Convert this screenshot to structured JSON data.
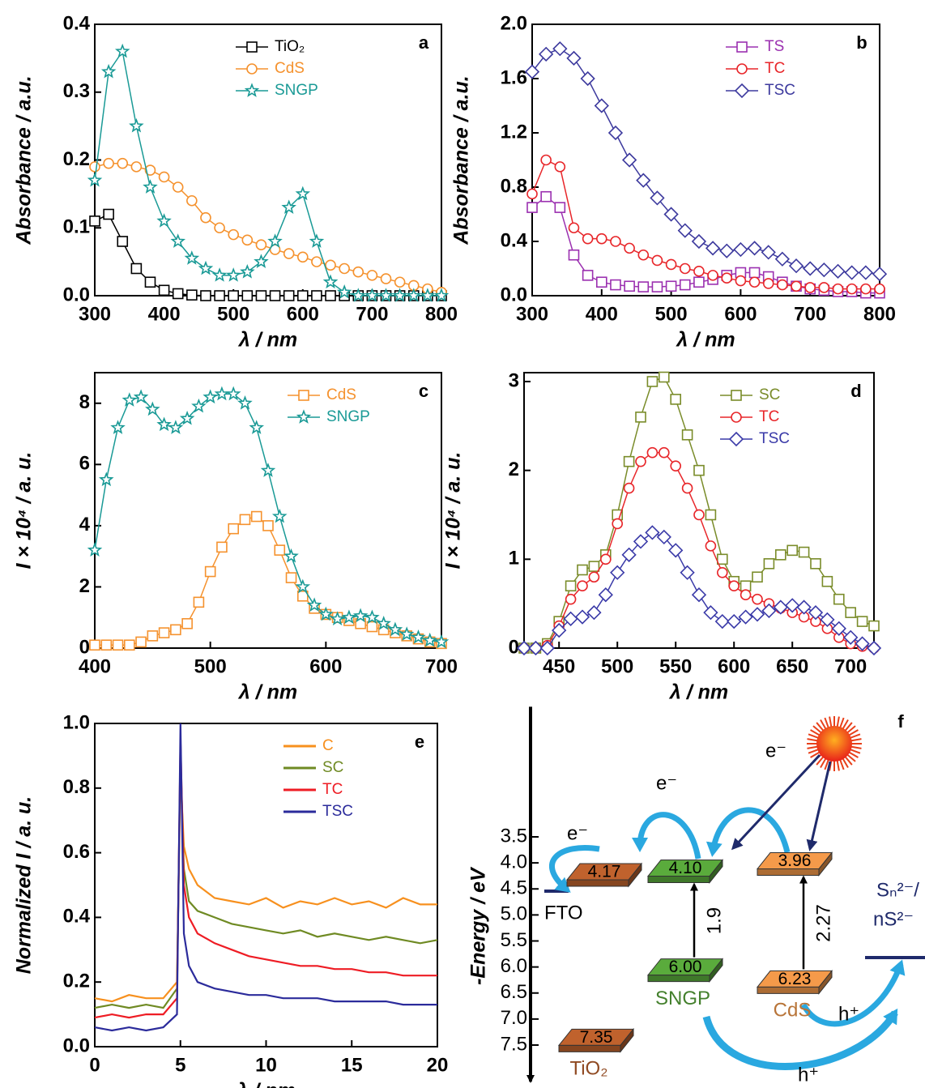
{
  "chart_data": [
    {
      "type": "line",
      "panel": "a",
      "xlabel": "λ / nm",
      "ylabel": "Absorbance / a.u.",
      "legend": "upper center",
      "x": [
        300,
        320,
        340,
        360,
        380,
        400,
        420,
        440,
        460,
        480,
        500,
        520,
        540,
        560,
        580,
        600,
        620,
        640,
        660,
        680,
        700,
        720,
        740,
        760,
        780,
        800
      ],
      "xlim": [
        300,
        800
      ],
      "xticks": [
        300,
        400,
        500,
        600,
        700,
        800
      ],
      "ylim": [
        0,
        0.4
      ],
      "yticks": [
        {
          "value": 0,
          "label": "0.0"
        },
        0.1,
        0.2,
        0.3,
        0.4
      ],
      "series": [
        {
          "name": "TiO₂",
          "color": "#000000",
          "marker": "square",
          "values": [
            0.11,
            0.12,
            0.08,
            0.04,
            0.02,
            0.008,
            0.003,
            0.001,
            0,
            0,
            0,
            0,
            0,
            0,
            0,
            0,
            0,
            0,
            0,
            0,
            0,
            0,
            0,
            0,
            0,
            0
          ]
        },
        {
          "name": "CdS",
          "color": "#f5922e",
          "marker": "circle",
          "values": [
            0.19,
            0.195,
            0.195,
            0.19,
            0.185,
            0.175,
            0.16,
            0.14,
            0.115,
            0.1,
            0.09,
            0.082,
            0.075,
            0.068,
            0.062,
            0.057,
            0.05,
            0.045,
            0.04,
            0.035,
            0.03,
            0.025,
            0.02,
            0.015,
            0.01,
            0.005
          ]
        },
        {
          "name": "SNGP",
          "color": "#1a9a96",
          "marker": "star",
          "values": [
            0.17,
            0.33,
            0.36,
            0.25,
            0.16,
            0.11,
            0.08,
            0.055,
            0.04,
            0.03,
            0.03,
            0.035,
            0.05,
            0.08,
            0.13,
            0.15,
            0.08,
            0.02,
            0.005,
            0,
            0,
            0,
            0,
            0,
            0,
            0
          ]
        }
      ]
    },
    {
      "type": "line",
      "panel": "b",
      "xlabel": "λ / nm",
      "ylabel": "Absorbance / a.u.",
      "legend": "upper right",
      "x": [
        300,
        320,
        340,
        360,
        380,
        400,
        420,
        440,
        460,
        480,
        500,
        520,
        540,
        560,
        580,
        600,
        620,
        640,
        660,
        680,
        700,
        720,
        740,
        760,
        780,
        800
      ],
      "xlim": [
        300,
        800
      ],
      "xticks": [
        300,
        400,
        500,
        600,
        700,
        800
      ],
      "ylim": [
        0,
        2.0
      ],
      "yticks": [
        {
          "value": 0,
          "label": "0.0"
        },
        0.4,
        0.8,
        1.2,
        1.6,
        {
          "value": 2,
          "label": "2.0"
        }
      ],
      "series": [
        {
          "name": "TS",
          "color": "#9b30b0",
          "marker": "square",
          "values": [
            0.65,
            0.73,
            0.65,
            0.3,
            0.15,
            0.1,
            0.08,
            0.07,
            0.065,
            0.065,
            0.07,
            0.08,
            0.1,
            0.12,
            0.15,
            0.17,
            0.17,
            0.14,
            0.1,
            0.07,
            0.05,
            0.04,
            0.03,
            0.03,
            0.02,
            0.02
          ]
        },
        {
          "name": "TC",
          "color": "#e8262a",
          "marker": "circle",
          "values": [
            0.75,
            1.0,
            0.95,
            0.5,
            0.42,
            0.42,
            0.4,
            0.35,
            0.3,
            0.26,
            0.23,
            0.2,
            0.18,
            0.15,
            0.13,
            0.11,
            0.1,
            0.09,
            0.08,
            0.07,
            0.06,
            0.06,
            0.05,
            0.05,
            0.05,
            0.05
          ]
        },
        {
          "name": "TSC",
          "color": "#3d3a9e",
          "marker": "diamond",
          "values": [
            1.65,
            1.78,
            1.82,
            1.75,
            1.6,
            1.4,
            1.2,
            1.0,
            0.85,
            0.72,
            0.6,
            0.48,
            0.4,
            0.35,
            0.33,
            0.34,
            0.35,
            0.32,
            0.27,
            0.22,
            0.2,
            0.19,
            0.18,
            0.17,
            0.17,
            0.16
          ]
        }
      ]
    },
    {
      "type": "line",
      "panel": "c",
      "xlabel": "λ / nm",
      "ylabel": "I × 10⁴ / a. u.",
      "legend": "upper right",
      "x": [
        400,
        410,
        420,
        430,
        440,
        450,
        460,
        470,
        480,
        490,
        500,
        510,
        520,
        530,
        540,
        550,
        560,
        570,
        580,
        590,
        600,
        610,
        620,
        630,
        640,
        650,
        660,
        670,
        680,
        690,
        700
      ],
      "xlim": [
        400,
        700
      ],
      "xticks": [
        400,
        500,
        600,
        700
      ],
      "ylim": [
        0,
        9
      ],
      "yticks": [
        0,
        2,
        4,
        6,
        8
      ],
      "series": [
        {
          "name": "CdS",
          "color": "#f5922e",
          "marker": "square",
          "values": [
            0.1,
            0.1,
            0.1,
            0.1,
            0.2,
            0.4,
            0.5,
            0.6,
            0.8,
            1.5,
            2.5,
            3.3,
            3.9,
            4.2,
            4.3,
            4.0,
            3.2,
            2.3,
            1.7,
            1.3,
            1.1,
            1.0,
            0.9,
            0.8,
            0.7,
            0.6,
            0.5,
            0.4,
            0.3,
            0.2,
            0.15
          ]
        },
        {
          "name": "SNGP",
          "color": "#1a9a96",
          "marker": "star",
          "values": [
            3.2,
            5.5,
            7.2,
            8.1,
            8.2,
            7.8,
            7.3,
            7.2,
            7.5,
            7.9,
            8.2,
            8.3,
            8.3,
            8.0,
            7.2,
            5.8,
            4.3,
            3.0,
            2.0,
            1.4,
            1.1,
            0.95,
            1.0,
            1.05,
            1.0,
            0.8,
            0.6,
            0.45,
            0.35,
            0.25,
            0.2
          ]
        }
      ]
    },
    {
      "type": "line",
      "panel": "d",
      "xlabel": "λ / nm",
      "ylabel": "I × 10⁴ / a. u.",
      "legend": "upper right",
      "x": [
        420,
        430,
        440,
        450,
        460,
        470,
        480,
        490,
        500,
        510,
        520,
        530,
        540,
        550,
        560,
        570,
        580,
        590,
        600,
        610,
        620,
        630,
        640,
        650,
        660,
        670,
        680,
        690,
        700,
        710,
        720
      ],
      "xlim": [
        420,
        720
      ],
      "xticks": [
        450,
        500,
        550,
        600,
        650,
        700
      ],
      "ylim": [
        0,
        3.1
      ],
      "yticks": [
        0,
        1,
        2,
        3
      ],
      "series": [
        {
          "name": "SC",
          "color": "#7a8c2a",
          "marker": "square",
          "values": [
            0,
            0,
            0.05,
            0.3,
            0.7,
            0.88,
            0.92,
            1.05,
            1.5,
            2.1,
            2.6,
            3.0,
            3.05,
            2.8,
            2.4,
            2.0,
            1.5,
            1.0,
            0.75,
            0.7,
            0.8,
            0.95,
            1.05,
            1.1,
            1.08,
            0.95,
            0.75,
            0.55,
            0.4,
            0.3,
            0.25
          ]
        },
        {
          "name": "TC",
          "color": "#e8262a",
          "marker": "circle",
          "values": [
            0,
            0,
            0.03,
            0.25,
            0.55,
            0.7,
            0.8,
            1.0,
            1.4,
            1.8,
            2.1,
            2.2,
            2.2,
            2.05,
            1.8,
            1.5,
            1.15,
            0.85,
            0.7,
            0.6,
            0.55,
            0.5,
            0.45,
            0.4,
            0.35,
            0.3,
            0.22,
            0.12,
            0.05,
            0.02,
            0
          ]
        },
        {
          "name": "TSC",
          "color": "#3a3aa8",
          "marker": "diamond",
          "values": [
            0,
            0,
            0,
            0.2,
            0.33,
            0.35,
            0.4,
            0.6,
            0.85,
            1.05,
            1.2,
            1.3,
            1.25,
            1.1,
            0.85,
            0.6,
            0.4,
            0.3,
            0.3,
            0.35,
            0.38,
            0.42,
            0.46,
            0.48,
            0.46,
            0.4,
            0.32,
            0.22,
            0.12,
            0.05,
            0
          ]
        }
      ]
    },
    {
      "type": "line",
      "panel": "e",
      "xlabel": "λ / nm",
      "ylabel": "Normalized I / a. u.",
      "legend": "upper right",
      "x": [
        0,
        1,
        2,
        3,
        4,
        4.8,
        5,
        5.2,
        5.5,
        6,
        7,
        8,
        9,
        10,
        11,
        12,
        13,
        14,
        15,
        16,
        17,
        18,
        19,
        20
      ],
      "xlim": [
        0,
        20
      ],
      "xticks": [
        0,
        5,
        10,
        15,
        20
      ],
      "ylim": [
        0,
        1
      ],
      "yticks": [
        {
          "value": 0,
          "label": "0.0"
        },
        0.2,
        0.4,
        0.6,
        0.8,
        {
          "value": 1,
          "label": "1.0"
        }
      ],
      "series": [
        {
          "name": "C",
          "color": "#f7901e",
          "marker": "none",
          "values": [
            0.15,
            0.14,
            0.16,
            0.15,
            0.15,
            0.2,
            0.85,
            0.62,
            0.55,
            0.5,
            0.46,
            0.45,
            0.44,
            0.46,
            0.43,
            0.45,
            0.44,
            0.46,
            0.44,
            0.45,
            0.43,
            0.46,
            0.44,
            0.44
          ]
        },
        {
          "name": "SC",
          "color": "#6f8a23",
          "marker": "none",
          "values": [
            0.12,
            0.13,
            0.12,
            0.13,
            0.12,
            0.18,
            0.9,
            0.55,
            0.45,
            0.42,
            0.4,
            0.38,
            0.37,
            0.36,
            0.35,
            0.36,
            0.34,
            0.35,
            0.34,
            0.33,
            0.34,
            0.33,
            0.32,
            0.33
          ]
        },
        {
          "name": "TC",
          "color": "#ee1c24",
          "marker": "none",
          "values": [
            0.09,
            0.1,
            0.09,
            0.1,
            0.1,
            0.15,
            0.95,
            0.5,
            0.4,
            0.35,
            0.32,
            0.3,
            0.28,
            0.27,
            0.26,
            0.25,
            0.25,
            0.24,
            0.24,
            0.23,
            0.23,
            0.22,
            0.22,
            0.22
          ]
        },
        {
          "name": "TSC",
          "color": "#2b2b9b",
          "marker": "none",
          "values": [
            0.06,
            0.05,
            0.06,
            0.05,
            0.06,
            0.1,
            1.0,
            0.35,
            0.25,
            0.2,
            0.18,
            0.17,
            0.16,
            0.16,
            0.15,
            0.15,
            0.15,
            0.14,
            0.14,
            0.14,
            0.14,
            0.13,
            0.13,
            0.13
          ]
        }
      ]
    },
    {
      "type": "energy",
      "panel": "f",
      "ylabel": "-Energy / eV",
      "ylim": [
        1.0,
        8.2
      ],
      "yticks": [
        3.5,
        {
          "value": 4,
          "label": "4.0"
        },
        4.5,
        {
          "value": 5,
          "label": "5.0"
        },
        5.5,
        {
          "value": 6,
          "label": "6.0"
        },
        6.5,
        {
          "value": 7,
          "label": "7.0"
        },
        7.5
      ],
      "materials": [
        {
          "name": "TiO₂",
          "color": "#c0622d",
          "values": [
            4.17,
            7.35
          ],
          "value_labels": [
            "4.17",
            "7.35"
          ]
        },
        {
          "name": "SNGP",
          "color": "#5aab3c",
          "values": [
            4.1,
            6.0
          ],
          "value_labels": [
            "4.10",
            "6.00"
          ],
          "gap": 1.9
        },
        {
          "name": "CdS",
          "color": "#f59a4a",
          "values": [
            3.96,
            6.23
          ],
          "value_labels": [
            "3.96",
            "6.23"
          ],
          "gap": 2.27
        }
      ],
      "fto": "FTO",
      "redox": [
        "Sₙ²⁻/",
        "nS²⁻"
      ],
      "electron": "e⁻",
      "hole": "h⁺"
    }
  ]
}
